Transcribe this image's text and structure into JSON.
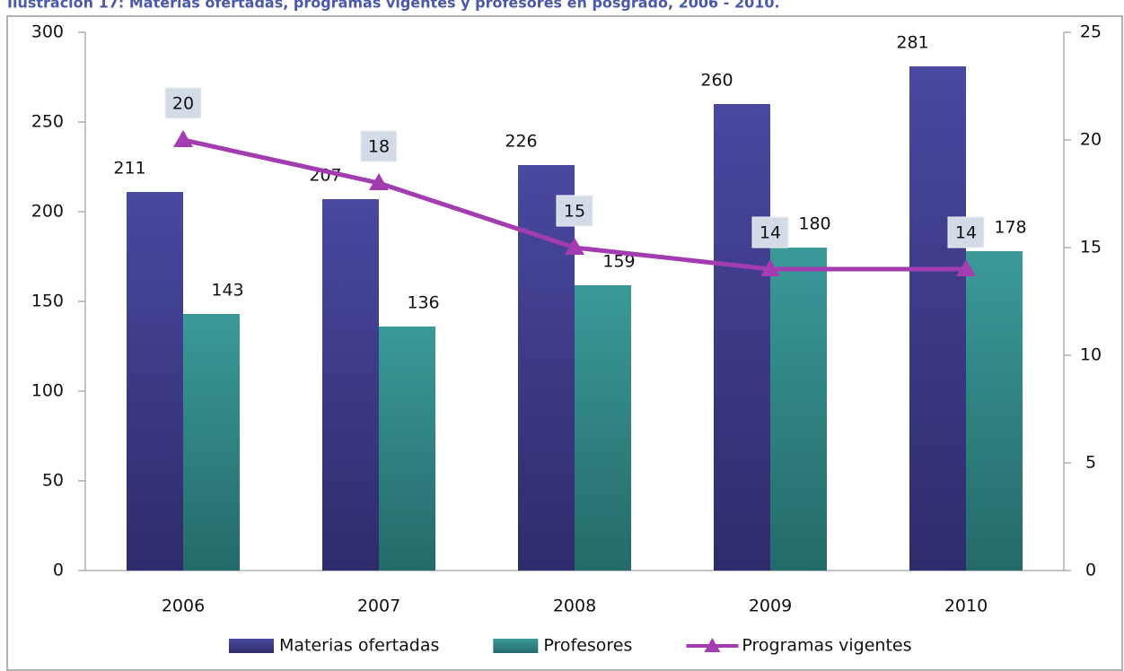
{
  "chart_data": {
    "type": "bar",
    "title": "Ilustración 17: Materias ofertadas, programas vigentes y profesores en posgrado, 2006 - 2010.",
    "categories": [
      "2006",
      "2007",
      "2008",
      "2009",
      "2010"
    ],
    "series": [
      {
        "name": "Materias ofertadas",
        "type": "bar",
        "color": "#3d3b8c",
        "values": [
          211,
          207,
          226,
          260,
          281
        ]
      },
      {
        "name": "Profesores",
        "type": "bar",
        "color": "#2f8585",
        "values": [
          143,
          136,
          159,
          180,
          178
        ]
      },
      {
        "name": "Programas vigentes",
        "type": "line",
        "axis": "y2",
        "color": "#a33cb0",
        "values": [
          20,
          18,
          15,
          14,
          14
        ]
      }
    ],
    "ylim": [
      0,
      300
    ],
    "yticks": [
      0,
      50,
      100,
      150,
      200,
      250,
      300
    ],
    "y2lim": [
      0,
      25
    ],
    "y2ticks": [
      0,
      5,
      10,
      15,
      20,
      25
    ],
    "legend": "bottom"
  }
}
